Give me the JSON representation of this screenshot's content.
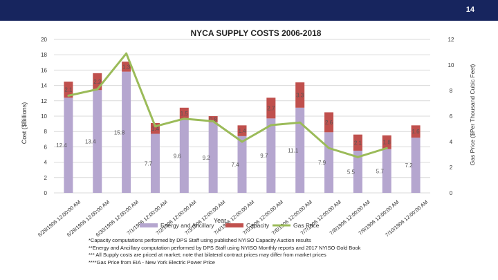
{
  "page_number": "14",
  "colors": {
    "header_bg": "#17255e",
    "energy": "#b5a6cf",
    "capacity": "#c0504d",
    "gas": "#9bbb59",
    "grid": "#d9d9d9"
  },
  "chart_data": {
    "type": "bar",
    "stacked": true,
    "title": "NYCA SUPPLY COSTS 2006-2018",
    "xlabel": "Year",
    "ylabel": "Cost ($Billions)",
    "y2label": "Gas Price ($Per Thousand Cubic Feet)",
    "ylim": [
      0,
      20
    ],
    "yticks": [
      "0",
      "2",
      "4",
      "6",
      "8",
      "10",
      "12",
      "14",
      "16",
      "18",
      "20"
    ],
    "y2lim": [
      0,
      12
    ],
    "y2ticks": [
      "0",
      "2",
      "4",
      "6",
      "8",
      "10",
      "12"
    ],
    "categories": [
      "6/29/1906 12:00:00 AM",
      "6/29/1906 12:00:00 AM",
      "6/30/1906 12:00:00 AM",
      "7/1/1906 12:00:00 AM",
      "7/2/1906 12:00:00 AM",
      "7/3/1906 12:00:00 AM",
      "7/4/1906 12:00:00 AM",
      "7/5/1906 12:00:00 AM",
      "7/6/1906 12:00:00 AM",
      "7/7/1906 12:00:00 AM",
      "7/8/1906 12:00:00 AM",
      "7/9/1906 12:00:00 AM",
      "7/10/1906 12:00:00 AM"
    ],
    "series": [
      {
        "name": "Energy and Ancillary",
        "values": [
          12.4,
          13.4,
          15.8,
          7.7,
          9.6,
          9.2,
          7.4,
          9.7,
          11.1,
          7.9,
          5.5,
          5.7,
          7.2
        ],
        "labels": [
          "12.4",
          "13.4",
          "15.8",
          "7.7",
          "9.6",
          "9.2",
          "7.4",
          "9.7",
          "11.1",
          "7.9",
          "5.5",
          "5.7",
          "7.2"
        ]
      },
      {
        "name": "Capacity",
        "values": [
          2.1,
          2.2,
          1.3,
          1.4,
          1.5,
          0.8,
          1.4,
          2.7,
          3.3,
          2.6,
          2.1,
          1.8,
          1.6
        ],
        "labels": [
          "2.1",
          "2.2",
          "1.3",
          "1.4",
          "1.5",
          "0.8",
          "1.4",
          "2.7",
          "3.3",
          "2.6",
          "2.1",
          "1.8",
          "1.6"
        ]
      },
      {
        "name": "Gas Price",
        "axis": "secondary",
        "type": "line",
        "values": [
          7.6,
          8.1,
          10.9,
          5.2,
          5.8,
          5.6,
          4.0,
          5.3,
          5.5,
          3.5,
          2.8,
          3.5,
          null
        ]
      }
    ],
    "legend": [
      "Energy and Ancillary",
      "Capacity",
      "Gas Price"
    ],
    "legend_position": "bottom",
    "grid": true
  },
  "footnotes": [
    "*Capacity computations performed by DPS Staff using published NYISO Capacity Auction results",
    "**Energy and Ancillary computation performed by DPS Staff using NYISO Monthly reports and 2017 NYISO Gold Book",
    "*** All Supply costs are priced at market; note that bilateral contract prices may differ from market prices",
    "****Gas Price from EIA - New York Electric Power Price"
  ]
}
